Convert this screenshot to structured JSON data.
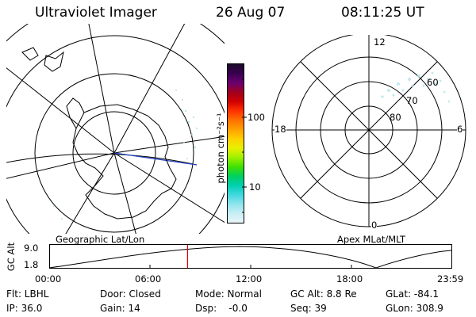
{
  "header": {
    "title": "Ultraviolet Imager",
    "date": "26 Aug 07",
    "time": "08:11:25 UT"
  },
  "left_panel": {
    "label": "Geographic Lat/Lon"
  },
  "right_panel": {
    "label": "Apex MLat/MLT",
    "mlt_labels": [
      "12",
      "18",
      "6",
      "0"
    ],
    "mlat_labels": [
      "60",
      "70",
      "80"
    ]
  },
  "colorbar": {
    "unit_label": "photon cm⁻²s⁻¹",
    "ticks": [
      "100",
      "10"
    ],
    "colors": [
      "#1a0a2a",
      "#3a0050",
      "#6a0070",
      "#a00020",
      "#d00000",
      "#ff3000",
      "#ff7000",
      "#ffa000",
      "#ffd000",
      "#e8f000",
      "#a0f000",
      "#40e000",
      "#00d060",
      "#00d0b0",
      "#40d8e0",
      "#90e4ec",
      "#c8eef4",
      "#e8f6fa"
    ]
  },
  "altitude_plot": {
    "ylabel": "GC Alt",
    "yticks": [
      "9.0",
      "1.8"
    ],
    "xticks": [
      "00:00",
      "06:00",
      "12:00",
      "18:00",
      "23:59"
    ],
    "current_time_fraction": 0.343,
    "marker_color": "#e00000"
  },
  "info": {
    "flt": "Flt: LBHL",
    "ip": "IP: 36.0",
    "door": "Door: Closed",
    "gain": "Gain: 14",
    "mode": "Mode: Normal",
    "dsp": "Dsp:    -0.0",
    "gc_alt": "GC Alt: 8.8 Re",
    "seq": "Seq: 39",
    "glat": "GLat: -84.1",
    "glon": "GLon: 308.9"
  }
}
